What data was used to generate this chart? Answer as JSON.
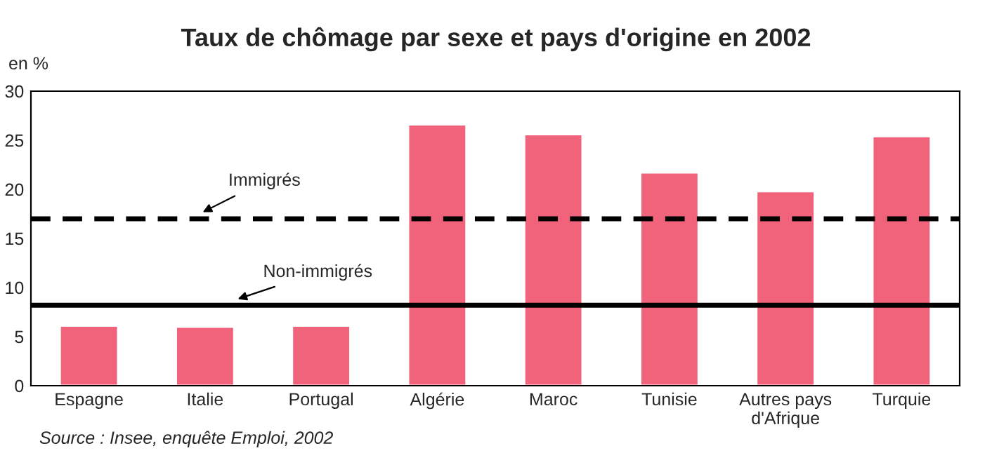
{
  "chart_data": {
    "type": "bar",
    "title": "Taux de chômage par sexe et pays d'origine en 2002",
    "ylabel": "en %",
    "categories": [
      "Espagne",
      "Italie",
      "Portugal",
      "Algérie",
      "Maroc",
      "Tunisie",
      "Autres pays\nd'Afrique",
      "Turquie"
    ],
    "values": [
      6.1,
      6.0,
      6.1,
      26.6,
      25.6,
      21.7,
      19.8,
      25.4
    ],
    "color": "#f0637a",
    "ylim": [
      0,
      30
    ],
    "yticks": [
      0,
      5,
      10,
      15,
      20,
      25,
      30
    ],
    "grid": false,
    "legend": false,
    "ref_lines": [
      {
        "axis": "y",
        "value": 17,
        "label": "Immigrés",
        "color": "#000000",
        "line_style": "dashed"
      },
      {
        "axis": "y",
        "value": 8.2,
        "label": "Non-immigrés",
        "color": "#000000",
        "line_style": "solid"
      }
    ],
    "annotations": [
      "Source : Insee, enquête Emploi, 2002"
    ]
  }
}
